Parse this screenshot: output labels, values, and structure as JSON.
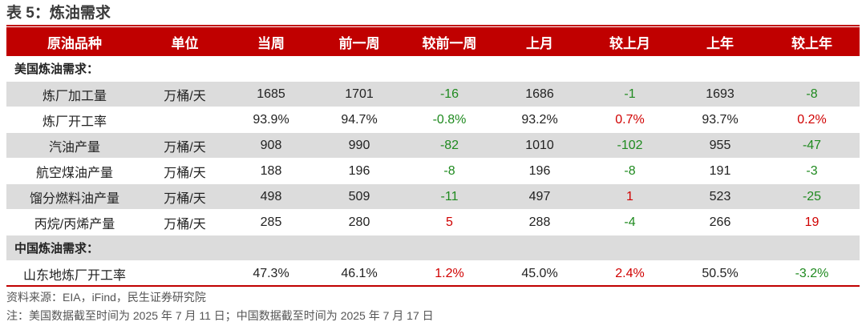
{
  "title": "表 5：炼油需求",
  "headers": [
    "原油品种",
    "单位",
    "当周",
    "前一周",
    "较前一周",
    "上月",
    "较上月",
    "上年",
    "较上年"
  ],
  "sections": [
    {
      "label": "美国炼油需求：",
      "rows": [
        {
          "cells": [
            "炼厂加工量",
            "万桶/天",
            "1685",
            "1701",
            "-16",
            "1686",
            "-1",
            "1693",
            "-8"
          ],
          "signs": [
            "",
            "",
            "",
            "",
            "neg",
            "",
            "neg",
            "",
            "neg"
          ]
        },
        {
          "cells": [
            "炼厂开工率",
            "",
            "93.9%",
            "94.7%",
            "-0.8%",
            "93.2%",
            "0.7%",
            "93.7%",
            "0.2%"
          ],
          "signs": [
            "",
            "",
            "",
            "",
            "neg",
            "",
            "pos",
            "",
            "pos"
          ]
        },
        {
          "cells": [
            "汽油产量",
            "万桶/天",
            "908",
            "990",
            "-82",
            "1010",
            "-102",
            "955",
            "-47"
          ],
          "signs": [
            "",
            "",
            "",
            "",
            "neg",
            "",
            "neg",
            "",
            "neg"
          ]
        },
        {
          "cells": [
            "航空煤油产量",
            "万桶/天",
            "188",
            "196",
            "-8",
            "196",
            "-8",
            "191",
            "-3"
          ],
          "signs": [
            "",
            "",
            "",
            "",
            "neg",
            "",
            "neg",
            "",
            "neg"
          ]
        },
        {
          "cells": [
            "馏分燃料油产量",
            "万桶/天",
            "498",
            "509",
            "-11",
            "497",
            "1",
            "523",
            "-25"
          ],
          "signs": [
            "",
            "",
            "",
            "",
            "neg",
            "",
            "pos",
            "",
            "neg"
          ]
        },
        {
          "cells": [
            "丙烷/丙烯产量",
            "万桶/天",
            "285",
            "280",
            "5",
            "288",
            "-4",
            "266",
            "19"
          ],
          "signs": [
            "",
            "",
            "",
            "",
            "pos",
            "",
            "neg",
            "",
            "pos"
          ]
        }
      ]
    },
    {
      "label": "中国炼油需求：",
      "rows": [
        {
          "cells": [
            "山东地炼厂开工率",
            "",
            "47.3%",
            "46.1%",
            "1.2%",
            "45.0%",
            "2.4%",
            "50.5%",
            "-3.2%"
          ],
          "signs": [
            "",
            "",
            "",
            "",
            "pos",
            "",
            "pos",
            "",
            "neg"
          ]
        }
      ]
    }
  ],
  "source": "资料来源：EIA，iFind，民生证券研究院",
  "note": "注：美国数据截至时间为 2025 年 7 月 11 日；中国数据截至时间为 2025 年 7 月 17 日",
  "colors": {
    "header_bg": "#c00000",
    "negative": "#1f8a1f",
    "positive": "#d00000",
    "shade": "#dcdcdc"
  }
}
